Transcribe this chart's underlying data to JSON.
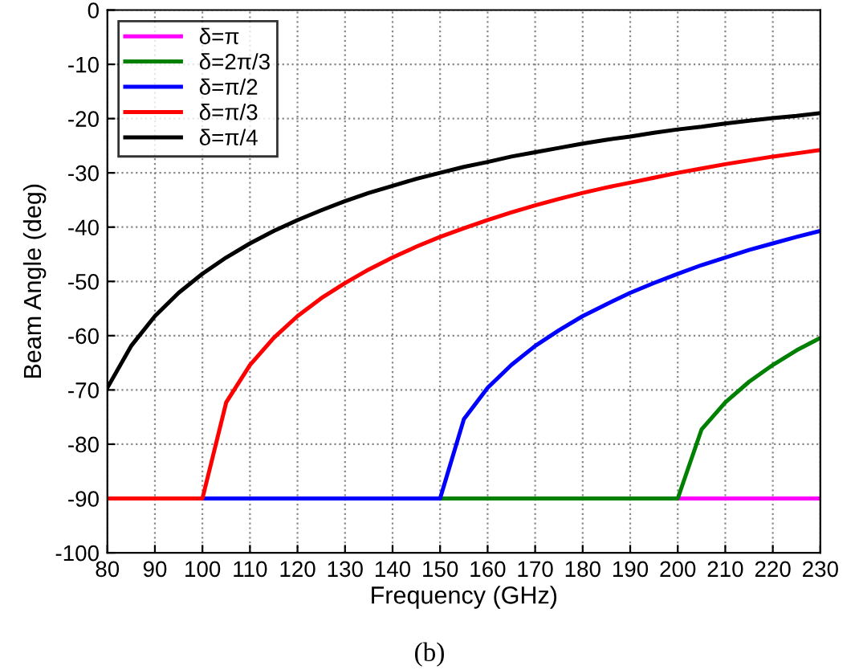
{
  "chart_data": {
    "type": "line",
    "xlabel": "Frequency (GHz)",
    "ylabel": "Beam Angle (deg)",
    "annotations": [
      "(b)"
    ],
    "x": [
      80,
      85,
      90,
      95,
      100,
      105,
      110,
      115,
      120,
      125,
      130,
      135,
      140,
      145,
      150,
      155,
      160,
      165,
      170,
      175,
      180,
      185,
      190,
      195,
      200,
      205,
      210,
      215,
      220,
      225,
      230
    ],
    "series": [
      {
        "name": "δ=π",
        "color": "#ff00ff",
        "values": [
          null,
          null,
          null,
          null,
          null,
          null,
          null,
          null,
          null,
          null,
          null,
          null,
          null,
          null,
          null,
          null,
          null,
          null,
          null,
          null,
          null,
          null,
          null,
          null,
          -90,
          -90,
          -90,
          -90,
          -90,
          -90,
          -90
        ]
      },
      {
        "name": "δ=2π/3",
        "color": "#008000",
        "values": [
          null,
          null,
          null,
          null,
          null,
          null,
          null,
          null,
          null,
          null,
          null,
          null,
          null,
          null,
          -90,
          -90,
          -90,
          -90,
          -90,
          -90,
          -90,
          -90,
          -90,
          -90,
          -90,
          -77.3,
          -72.3,
          -68.5,
          -65.4,
          -62.7,
          -60.4
        ]
      },
      {
        "name": "δ=π/2",
        "color": "#0000ff",
        "values": [
          null,
          null,
          null,
          null,
          -90,
          -90,
          -90,
          -90,
          -90,
          -90,
          -90,
          -90,
          -90,
          -90,
          -90,
          -75.4,
          -69.6,
          -65.4,
          -61.9,
          -59.0,
          -56.4,
          -54.2,
          -52.1,
          -50.3,
          -48.6,
          -47.0,
          -45.6,
          -44.2,
          -43.0,
          -41.8,
          -40.7
        ]
      },
      {
        "name": "δ=π/3",
        "color": "#ff0000",
        "values": [
          -90,
          -90,
          -90,
          -90,
          -90,
          -72.3,
          -65.4,
          -60.4,
          -56.4,
          -53.1,
          -50.3,
          -47.8,
          -45.6,
          -43.6,
          -41.8,
          -40.2,
          -38.7,
          -37.3,
          -36.0,
          -34.8,
          -33.7,
          -32.7,
          -31.8,
          -30.9,
          -30.0,
          -29.2,
          -28.4,
          -27.7,
          -27.0,
          -26.4,
          -25.8
        ]
      },
      {
        "name": "δ=π/4",
        "color": "#000000",
        "values": [
          -69.6,
          -61.9,
          -56.4,
          -52.1,
          -48.6,
          -45.6,
          -43.0,
          -40.7,
          -38.7,
          -36.9,
          -35.2,
          -33.7,
          -32.4,
          -31.1,
          -30.0,
          -28.9,
          -28.0,
          -27.0,
          -26.2,
          -25.4,
          -24.6,
          -23.9,
          -23.3,
          -22.6,
          -22.0,
          -21.5,
          -20.9,
          -20.4,
          -19.9,
          -19.5,
          -19.0
        ]
      }
    ],
    "xlim": [
      80,
      230
    ],
    "ylim": [
      -100,
      0
    ],
    "xticks": [
      80,
      90,
      100,
      110,
      120,
      130,
      140,
      150,
      160,
      170,
      180,
      190,
      200,
      210,
      220,
      230
    ],
    "yticks": [
      -100,
      -90,
      -80,
      -70,
      -60,
      -50,
      -40,
      -30,
      -20,
      -10,
      0
    ],
    "grid": true,
    "legend": "top left",
    "marker": "none",
    "line_style": "solid"
  }
}
